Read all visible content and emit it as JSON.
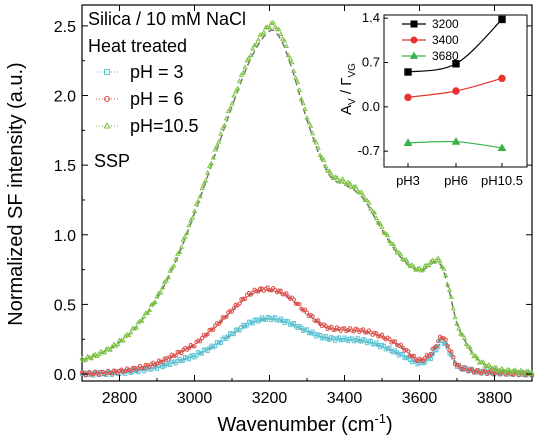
{
  "chart_data": [
    {
      "type": "scatter",
      "xlabel": "Wavenumber",
      "xlabel_unit": "(cm",
      "xlabel_sup": "-1",
      "xlabel_close": ")",
      "ylabel": "Normalized SF intensity (a.u.)",
      "xlim": [
        2700,
        3900
      ],
      "ylim": [
        -0.05,
        2.65
      ],
      "xticks": [
        "2800",
        "3000",
        "3200",
        "3400",
        "3600",
        "3800"
      ],
      "yticks": [
        "0.0",
        "0.5",
        "1.0",
        "1.5",
        "2.0",
        "2.5"
      ],
      "legend_title_1": "Silica / 10 mM NaCl",
      "legend_title_2": "Heat treated",
      "polarization_label": "SSP",
      "legend_position": "top-left",
      "fit_line_style": "dashed grey",
      "series": [
        {
          "name": "pH = 3",
          "color": "#5ec5d6",
          "marker": "square",
          "x": [
            2700,
            2800,
            2900,
            3000,
            3050,
            3100,
            3150,
            3200,
            3250,
            3300,
            3350,
            3400,
            3450,
            3500,
            3550,
            3600,
            3630,
            3650,
            3660,
            3680,
            3700,
            3750,
            3800,
            3900
          ],
          "y": [
            0.0,
            0.01,
            0.05,
            0.13,
            0.2,
            0.29,
            0.37,
            0.4,
            0.37,
            0.31,
            0.26,
            0.25,
            0.24,
            0.2,
            0.14,
            0.08,
            0.12,
            0.2,
            0.24,
            0.16,
            0.06,
            0.02,
            0.01,
            0.0
          ]
        },
        {
          "name": "pH = 6",
          "color": "#e0504a",
          "marker": "circle",
          "x": [
            2700,
            2800,
            2900,
            3000,
            3050,
            3100,
            3150,
            3200,
            3250,
            3300,
            3350,
            3400,
            3450,
            3500,
            3550,
            3600,
            3630,
            3650,
            3660,
            3680,
            3700,
            3750,
            3800,
            3900
          ],
          "y": [
            0.0,
            0.02,
            0.08,
            0.21,
            0.33,
            0.46,
            0.58,
            0.61,
            0.56,
            0.44,
            0.34,
            0.32,
            0.31,
            0.27,
            0.2,
            0.1,
            0.15,
            0.23,
            0.27,
            0.18,
            0.06,
            0.02,
            0.01,
            0.0
          ]
        },
        {
          "name": "pH=10.5",
          "color": "#7cc242",
          "marker": "triangle",
          "x": [
            2700,
            2750,
            2800,
            2850,
            2900,
            2950,
            3000,
            3050,
            3100,
            3150,
            3200,
            3220,
            3250,
            3300,
            3350,
            3380,
            3400,
            3450,
            3500,
            3550,
            3600,
            3630,
            3650,
            3660,
            3680,
            3700,
            3750,
            3800,
            3850,
            3900
          ],
          "y": [
            0.1,
            0.15,
            0.23,
            0.36,
            0.55,
            0.82,
            1.17,
            1.56,
            1.95,
            2.3,
            2.5,
            2.48,
            2.3,
            1.85,
            1.5,
            1.4,
            1.38,
            1.28,
            1.05,
            0.85,
            0.75,
            0.8,
            0.82,
            0.78,
            0.6,
            0.35,
            0.12,
            0.04,
            0.02,
            0.01
          ]
        }
      ]
    },
    {
      "type": "line",
      "xlabel": "",
      "ylabel_A": "A",
      "ylabel_Asub": "V",
      "ylabel_sep": " / ",
      "ylabel_G": "Γ",
      "ylabel_Gsub": "VG",
      "categories": [
        "pH3",
        "pH6",
        "pH10.5"
      ],
      "ylim": [
        -0.95,
        1.45
      ],
      "yticks": [
        "1.4",
        "0.7",
        "0.0",
        "-0.7"
      ],
      "legend_position": "top-left",
      "series": [
        {
          "name": "3200",
          "color": "#000000",
          "marker": "square",
          "values": [
            0.55,
            0.68,
            1.38
          ]
        },
        {
          "name": "3400",
          "color": "#e8332e",
          "marker": "circle",
          "values": [
            0.15,
            0.25,
            0.45
          ]
        },
        {
          "name": "3680",
          "color": "#3cb34a",
          "marker": "triangle",
          "values": [
            -0.57,
            -0.55,
            -0.65
          ]
        }
      ]
    }
  ]
}
